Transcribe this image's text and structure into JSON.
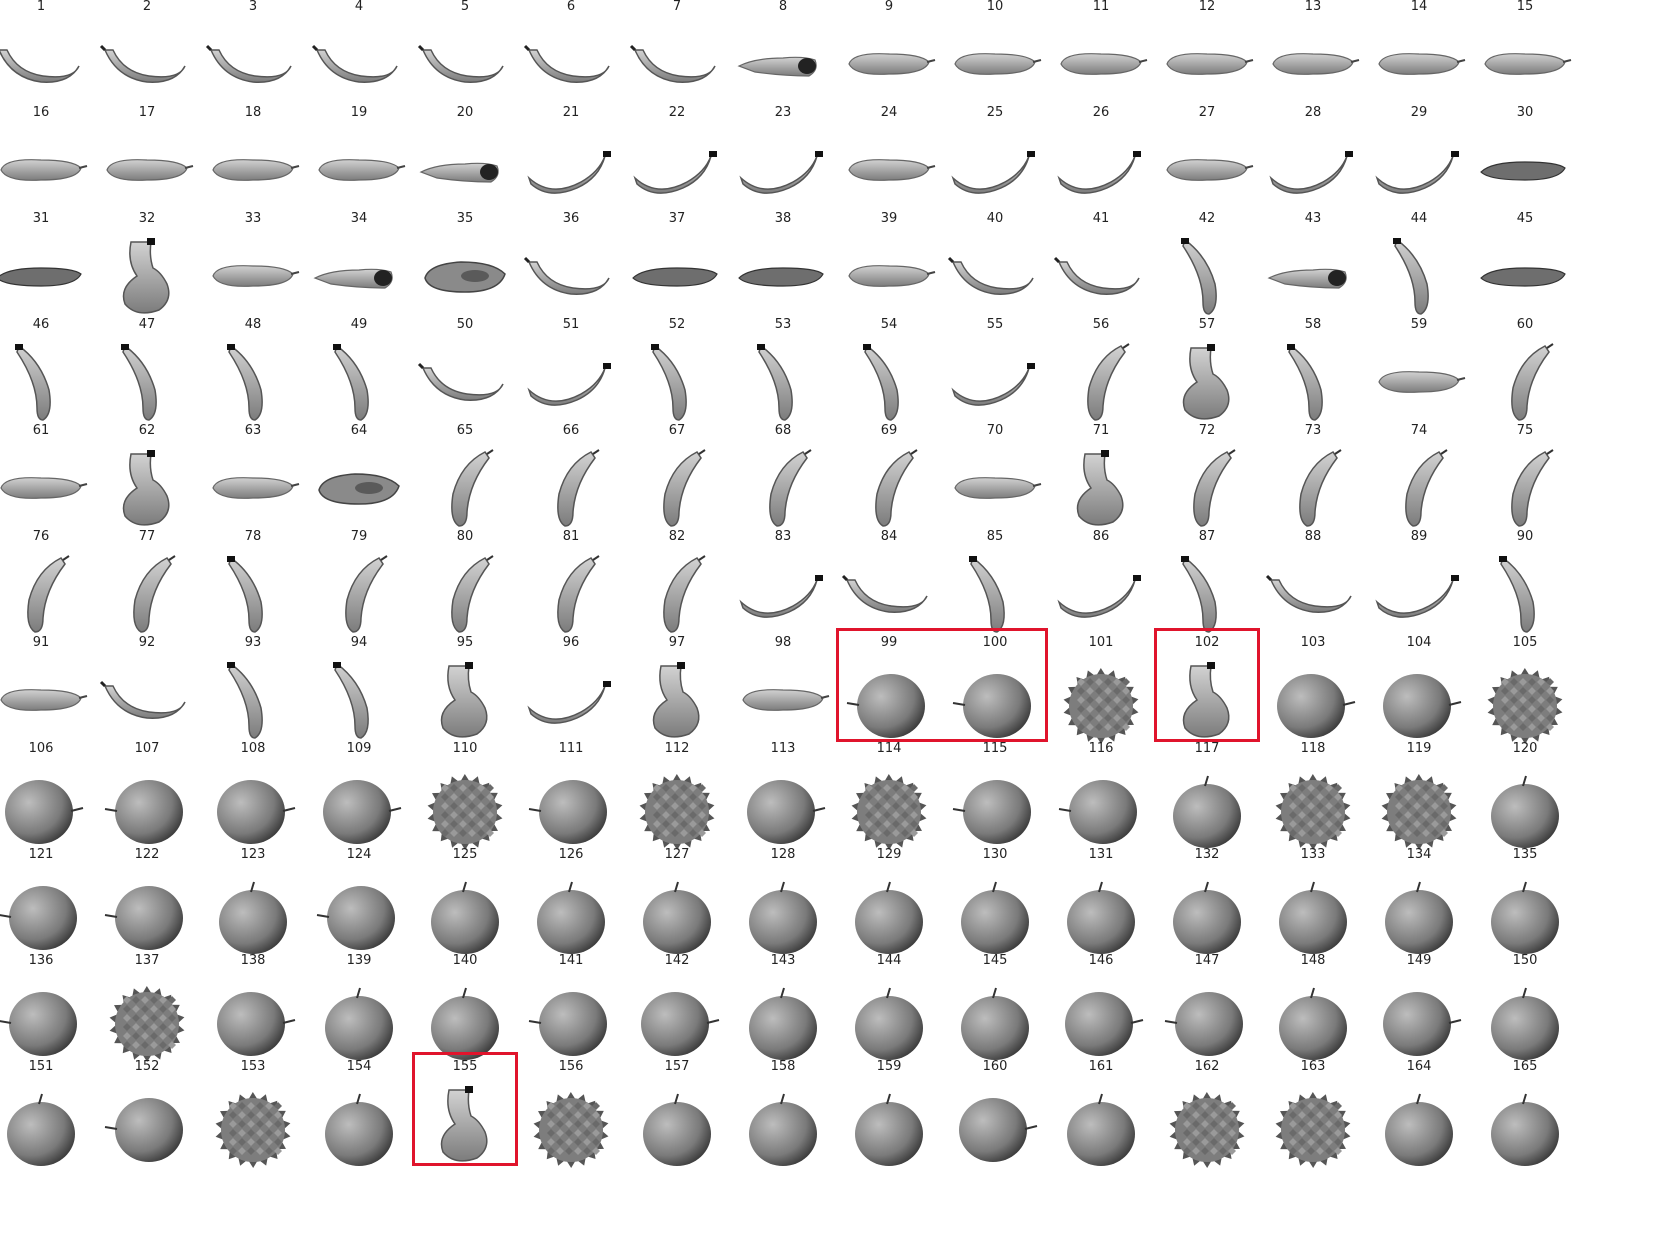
{
  "grid": {
    "columns": 15,
    "highlight_color": "#e0142c",
    "highlighted_ids": [
      99,
      100,
      102,
      155
    ],
    "items": [
      {
        "id": "1",
        "kind": "banana-flat"
      },
      {
        "id": "2",
        "kind": "banana-flat"
      },
      {
        "id": "3",
        "kind": "banana-flat"
      },
      {
        "id": "4",
        "kind": "banana-flat"
      },
      {
        "id": "5",
        "kind": "banana-flat"
      },
      {
        "id": "6",
        "kind": "banana-flat"
      },
      {
        "id": "7",
        "kind": "banana-flat"
      },
      {
        "id": "8",
        "kind": "banana-end"
      },
      {
        "id": "9",
        "kind": "banana-side"
      },
      {
        "id": "10",
        "kind": "banana-side"
      },
      {
        "id": "11",
        "kind": "banana-side"
      },
      {
        "id": "12",
        "kind": "banana-side"
      },
      {
        "id": "13",
        "kind": "banana-side"
      },
      {
        "id": "14",
        "kind": "banana-side"
      },
      {
        "id": "15",
        "kind": "banana-side"
      },
      {
        "id": "16",
        "kind": "banana-side"
      },
      {
        "id": "17",
        "kind": "banana-side"
      },
      {
        "id": "18",
        "kind": "banana-side"
      },
      {
        "id": "19",
        "kind": "banana-side"
      },
      {
        "id": "20",
        "kind": "banana-end"
      },
      {
        "id": "21",
        "kind": "banana-curve"
      },
      {
        "id": "22",
        "kind": "banana-curve"
      },
      {
        "id": "23",
        "kind": "banana-curve"
      },
      {
        "id": "24",
        "kind": "banana-side"
      },
      {
        "id": "25",
        "kind": "banana-curve"
      },
      {
        "id": "26",
        "kind": "banana-curve"
      },
      {
        "id": "27",
        "kind": "banana-side"
      },
      {
        "id": "28",
        "kind": "banana-curve"
      },
      {
        "id": "29",
        "kind": "banana-curve"
      },
      {
        "id": "30",
        "kind": "banana-dark-side"
      },
      {
        "id": "31",
        "kind": "banana-dark-side"
      },
      {
        "id": "32",
        "kind": "banana-blob"
      },
      {
        "id": "33",
        "kind": "banana-side"
      },
      {
        "id": "34",
        "kind": "banana-end"
      },
      {
        "id": "35",
        "kind": "banana-blob-flat"
      },
      {
        "id": "36",
        "kind": "banana-flat"
      },
      {
        "id": "37",
        "kind": "banana-dark-side"
      },
      {
        "id": "38",
        "kind": "banana-dark-side"
      },
      {
        "id": "39",
        "kind": "banana-side"
      },
      {
        "id": "40",
        "kind": "banana-flat"
      },
      {
        "id": "41",
        "kind": "banana-flat"
      },
      {
        "id": "42",
        "kind": "banana-vertical"
      },
      {
        "id": "43",
        "kind": "banana-end"
      },
      {
        "id": "44",
        "kind": "banana-vertical"
      },
      {
        "id": "45",
        "kind": "banana-dark-side"
      },
      {
        "id": "46",
        "kind": "banana-vertical"
      },
      {
        "id": "47",
        "kind": "banana-vertical"
      },
      {
        "id": "48",
        "kind": "banana-vertical"
      },
      {
        "id": "49",
        "kind": "banana-vertical"
      },
      {
        "id": "50",
        "kind": "banana-flat"
      },
      {
        "id": "51",
        "kind": "banana-curve"
      },
      {
        "id": "52",
        "kind": "banana-vertical"
      },
      {
        "id": "53",
        "kind": "banana-vertical"
      },
      {
        "id": "54",
        "kind": "banana-vertical"
      },
      {
        "id": "55",
        "kind": "banana-curve"
      },
      {
        "id": "56",
        "kind": "banana-upright"
      },
      {
        "id": "57",
        "kind": "banana-blob"
      },
      {
        "id": "58",
        "kind": "banana-vertical"
      },
      {
        "id": "59",
        "kind": "banana-side"
      },
      {
        "id": "60",
        "kind": "banana-upright"
      },
      {
        "id": "61",
        "kind": "banana-side"
      },
      {
        "id": "62",
        "kind": "banana-blob"
      },
      {
        "id": "63",
        "kind": "banana-side"
      },
      {
        "id": "64",
        "kind": "banana-blob-flat"
      },
      {
        "id": "65",
        "kind": "banana-upright"
      },
      {
        "id": "66",
        "kind": "banana-upright"
      },
      {
        "id": "67",
        "kind": "banana-upright"
      },
      {
        "id": "68",
        "kind": "banana-upright"
      },
      {
        "id": "69",
        "kind": "banana-upright"
      },
      {
        "id": "70",
        "kind": "banana-side"
      },
      {
        "id": "71",
        "kind": "banana-blob"
      },
      {
        "id": "72",
        "kind": "banana-upright"
      },
      {
        "id": "73",
        "kind": "banana-upright"
      },
      {
        "id": "74",
        "kind": "banana-upright"
      },
      {
        "id": "75",
        "kind": "banana-upright"
      },
      {
        "id": "76",
        "kind": "banana-upright"
      },
      {
        "id": "77",
        "kind": "banana-upright"
      },
      {
        "id": "78",
        "kind": "banana-vertical"
      },
      {
        "id": "79",
        "kind": "banana-upright"
      },
      {
        "id": "80",
        "kind": "banana-upright"
      },
      {
        "id": "81",
        "kind": "banana-upright"
      },
      {
        "id": "82",
        "kind": "banana-upright"
      },
      {
        "id": "83",
        "kind": "banana-curve"
      },
      {
        "id": "84",
        "kind": "banana-flat"
      },
      {
        "id": "85",
        "kind": "banana-vertical"
      },
      {
        "id": "86",
        "kind": "banana-curve"
      },
      {
        "id": "87",
        "kind": "banana-vertical"
      },
      {
        "id": "88",
        "kind": "banana-flat"
      },
      {
        "id": "89",
        "kind": "banana-curve"
      },
      {
        "id": "90",
        "kind": "banana-vertical"
      },
      {
        "id": "91",
        "kind": "banana-side"
      },
      {
        "id": "92",
        "kind": "banana-flat"
      },
      {
        "id": "93",
        "kind": "banana-vertical"
      },
      {
        "id": "94",
        "kind": "banana-vertical"
      },
      {
        "id": "95",
        "kind": "banana-blob"
      },
      {
        "id": "96",
        "kind": "banana-curve"
      },
      {
        "id": "97",
        "kind": "banana-blob"
      },
      {
        "id": "98",
        "kind": "banana-side"
      },
      {
        "id": "99",
        "kind": "apple-stem-left"
      },
      {
        "id": "100",
        "kind": "apple-stem-left"
      },
      {
        "id": "101",
        "kind": "pineapple"
      },
      {
        "id": "102",
        "kind": "banana-blob"
      },
      {
        "id": "103",
        "kind": "apple-stem-right"
      },
      {
        "id": "104",
        "kind": "apple-stem-right"
      },
      {
        "id": "105",
        "kind": "pineapple"
      },
      {
        "id": "106",
        "kind": "apple-stem-right"
      },
      {
        "id": "107",
        "kind": "apple-stem-left"
      },
      {
        "id": "108",
        "kind": "apple-stem-right"
      },
      {
        "id": "109",
        "kind": "apple-stem-right"
      },
      {
        "id": "110",
        "kind": "pineapple"
      },
      {
        "id": "111",
        "kind": "apple-stem-left"
      },
      {
        "id": "112",
        "kind": "pineapple"
      },
      {
        "id": "113",
        "kind": "apple-stem-right"
      },
      {
        "id": "114",
        "kind": "pineapple"
      },
      {
        "id": "115",
        "kind": "apple-stem-left"
      },
      {
        "id": "116",
        "kind": "apple-stem-left"
      },
      {
        "id": "117",
        "kind": "apple-stem-top"
      },
      {
        "id": "118",
        "kind": "pineapple"
      },
      {
        "id": "119",
        "kind": "pineapple"
      },
      {
        "id": "120",
        "kind": "apple-stem-top"
      },
      {
        "id": "121",
        "kind": "apple-stem-left"
      },
      {
        "id": "122",
        "kind": "apple-stem-left"
      },
      {
        "id": "123",
        "kind": "apple-stem-top"
      },
      {
        "id": "124",
        "kind": "apple-stem-left"
      },
      {
        "id": "125",
        "kind": "apple-stem-top"
      },
      {
        "id": "126",
        "kind": "apple-stem-top"
      },
      {
        "id": "127",
        "kind": "apple-stem-top"
      },
      {
        "id": "128",
        "kind": "apple-stem-top"
      },
      {
        "id": "129",
        "kind": "apple-stem-top"
      },
      {
        "id": "130",
        "kind": "apple-stem-top"
      },
      {
        "id": "131",
        "kind": "apple-stem-top"
      },
      {
        "id": "132",
        "kind": "apple-stem-top"
      },
      {
        "id": "133",
        "kind": "apple-stem-top"
      },
      {
        "id": "134",
        "kind": "apple-stem-top"
      },
      {
        "id": "135",
        "kind": "apple-stem-top"
      },
      {
        "id": "136",
        "kind": "apple-stem-left"
      },
      {
        "id": "137",
        "kind": "pineapple"
      },
      {
        "id": "138",
        "kind": "apple-stem-right"
      },
      {
        "id": "139",
        "kind": "apple-stem-top"
      },
      {
        "id": "140",
        "kind": "apple-stem-top"
      },
      {
        "id": "141",
        "kind": "apple-stem-left"
      },
      {
        "id": "142",
        "kind": "apple-stem-right"
      },
      {
        "id": "143",
        "kind": "apple-stem-top"
      },
      {
        "id": "144",
        "kind": "apple-stem-top"
      },
      {
        "id": "145",
        "kind": "apple-stem-top"
      },
      {
        "id": "146",
        "kind": "apple-stem-right"
      },
      {
        "id": "147",
        "kind": "apple-stem-left"
      },
      {
        "id": "148",
        "kind": "apple-stem-top"
      },
      {
        "id": "149",
        "kind": "apple-stem-right"
      },
      {
        "id": "150",
        "kind": "apple-stem-top"
      },
      {
        "id": "151",
        "kind": "apple-stem-top"
      },
      {
        "id": "152",
        "kind": "apple-stem-left"
      },
      {
        "id": "153",
        "kind": "pineapple"
      },
      {
        "id": "154",
        "kind": "apple-stem-top"
      },
      {
        "id": "155",
        "kind": "banana-blob"
      },
      {
        "id": "156",
        "kind": "pineapple"
      },
      {
        "id": "157",
        "kind": "apple-stem-top"
      },
      {
        "id": "158",
        "kind": "apple-stem-top"
      },
      {
        "id": "159",
        "kind": "apple-stem-top"
      },
      {
        "id": "160",
        "kind": "apple-stem-right"
      },
      {
        "id": "161",
        "kind": "apple-stem-top"
      },
      {
        "id": "162",
        "kind": "pineapple"
      },
      {
        "id": "163",
        "kind": "pineapple"
      },
      {
        "id": "164",
        "kind": "apple-stem-top"
      },
      {
        "id": "165",
        "kind": "apple-stem-top"
      }
    ]
  }
}
